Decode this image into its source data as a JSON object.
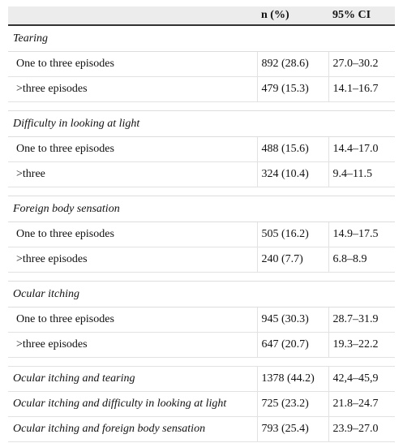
{
  "table": {
    "header": [
      "n (%)",
      "95% CI"
    ],
    "groups": [
      {
        "title": "Tearing",
        "rows": [
          [
            "One to three episodes",
            "892 (28.6)",
            "27.0–30.2"
          ],
          [
            ">three episodes",
            "479 (15.3)",
            "14.1–16.7"
          ]
        ]
      },
      {
        "title": "Difficulty in looking at light",
        "rows": [
          [
            "One to three episodes",
            "488 (15.6)",
            "14.4–17.0"
          ],
          [
            ">three",
            "324 (10.4)",
            "9.4–11.5"
          ]
        ]
      },
      {
        "title": "Foreign body sensation",
        "rows": [
          [
            "One to three episodes",
            "505 (16.2)",
            "14.9–17.5"
          ],
          [
            ">three episodes",
            "240 (7.7)",
            "6.8–8.9"
          ]
        ]
      },
      {
        "title": "Ocular itching",
        "rows": [
          [
            "One to three episodes",
            "945 (30.3)",
            "28.7–31.9"
          ],
          [
            ">three episodes",
            "647 (20.7)",
            "19.3–22.2"
          ]
        ]
      },
      {
        "italic": true,
        "rows": [
          [
            "Ocular itching and tearing",
            "1378 (44.2)",
            "42,4–45,9"
          ],
          [
            "Ocular itching and difficulty in looking at light",
            "725 (23.2)",
            "21.8–24.7"
          ],
          [
            "Ocular itching and foreign body sensation",
            "793 (25.4)",
            "23.9–27.0"
          ]
        ]
      }
    ]
  }
}
